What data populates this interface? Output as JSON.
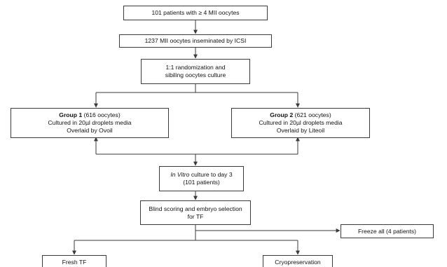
{
  "boxes": {
    "patients": {
      "text": "101 patients with ≥ 4 MII oocytes"
    },
    "inseminated": {
      "text": "1237 MII oocytes inseminated by ICSI"
    },
    "randomization": {
      "line1": "1:1 randomization and",
      "line2": "sibiling oocytes culture"
    },
    "group1": {
      "title": "Group 1",
      "count": " (616 oocytes)",
      "line2": "Cultured in 20µl droplets media",
      "line3": "Overlaid by Ovoil"
    },
    "group2": {
      "title": "Group 2",
      "count": " (621 oocytes)",
      "line2": "Cultured in 20µl droplets media",
      "line3": "Overlaid by Liteoil"
    },
    "culture": {
      "italic": "In Vitro",
      "rest": " culture to day 3",
      "line2": "(101 patients)"
    },
    "blind": {
      "line1": "Blind scoring and embryo selection",
      "line2": "for TF"
    },
    "freeze": {
      "text": "Freeze all (4 patients)"
    },
    "fresh": {
      "text": "Fresh TF"
    },
    "cryo": {
      "text": "Cryopreservation"
    }
  },
  "colors": {
    "line": "#3a3a3a",
    "box_border": "#3a3a3a",
    "text": "#111111"
  }
}
